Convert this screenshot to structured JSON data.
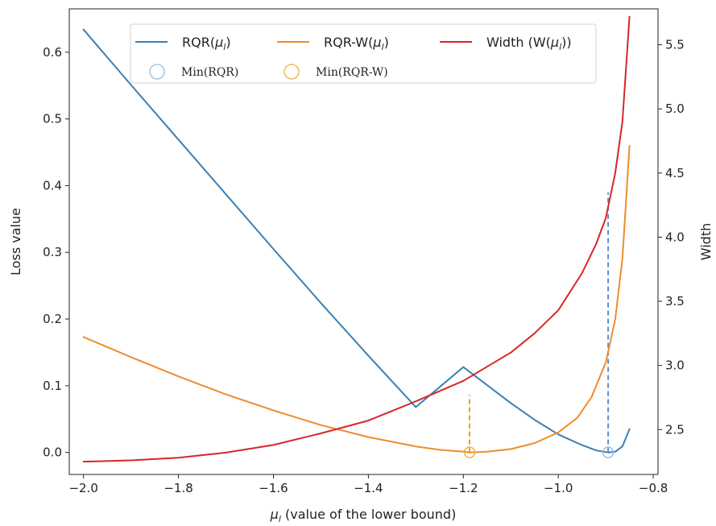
{
  "chart_data": {
    "type": "line",
    "xlabel_main": "μ",
    "xlabel_sub": "l",
    "xlabel_rest": " (value of the lower bound)",
    "ylabel_left": "Loss value",
    "ylabel_right": "Width",
    "xlim": [
      -2.03,
      -0.79
    ],
    "ylim_left": [
      -0.033,
      0.665
    ],
    "ylim_right": [
      2.15,
      5.78
    ],
    "x_ticks": [
      -2.0,
      -1.8,
      -1.6,
      -1.4,
      -1.2,
      -1.0,
      -0.8
    ],
    "x_tick_labels": [
      "−2.0",
      "−1.8",
      "−1.6",
      "−1.4",
      "−1.2",
      "−1.0",
      "−0.8"
    ],
    "y_left_ticks": [
      0.0,
      0.1,
      0.2,
      0.3,
      0.4,
      0.5,
      0.6
    ],
    "y_left_tick_labels": [
      "0.0",
      "0.1",
      "0.2",
      "0.3",
      "0.4",
      "0.5",
      "0.6"
    ],
    "y_right_ticks": [
      2.5,
      3.0,
      3.5,
      4.0,
      4.5,
      5.0,
      5.5
    ],
    "y_right_tick_labels": [
      "2.5",
      "3.0",
      "3.5",
      "4.0",
      "4.5",
      "5.0",
      "5.5"
    ],
    "series": [
      {
        "name": "RQR(μl)",
        "name_base": "RQR(",
        "name_sym": "μ",
        "name_sub": "l",
        "name_close": ")",
        "axis": "left",
        "color": "#3a80b4",
        "x": [
          -2.0,
          -1.9,
          -1.8,
          -1.7,
          -1.6,
          -1.5,
          -1.4,
          -1.3,
          -1.2,
          -1.1,
          -1.05,
          -1.0,
          -0.95,
          -0.92,
          -0.895,
          -0.88,
          -0.865,
          -0.85
        ],
        "y": [
          0.634,
          0.551,
          0.469,
          0.387,
          0.305,
          0.224,
          0.145,
          0.068,
          0.128,
          0.074,
          0.049,
          0.027,
          0.011,
          0.003,
          0.0,
          0.001,
          0.009,
          0.035
        ]
      },
      {
        "name": "RQR-W(μl)",
        "name_base": "RQR-W(",
        "name_sym": "μ",
        "name_sub": "l",
        "name_close": ")",
        "axis": "left",
        "color": "#ef8c2c",
        "x": [
          -2.0,
          -1.9,
          -1.8,
          -1.7,
          -1.6,
          -1.5,
          -1.4,
          -1.3,
          -1.25,
          -1.2,
          -1.187,
          -1.15,
          -1.1,
          -1.05,
          -1.0,
          -0.96,
          -0.93,
          -0.9,
          -0.88,
          -0.865,
          -0.85
        ],
        "y": [
          0.173,
          0.143,
          0.114,
          0.087,
          0.063,
          0.041,
          0.023,
          0.009,
          0.004,
          0.001,
          0.0,
          0.001,
          0.005,
          0.014,
          0.03,
          0.052,
          0.083,
          0.135,
          0.2,
          0.29,
          0.46
        ]
      },
      {
        "name": "Width (W(μl))",
        "name_base": "Width (W(",
        "name_sym": "μ",
        "name_sub": "l",
        "name_close": "))",
        "axis": "right",
        "color": "#d62728",
        "x": [
          -2.0,
          -1.9,
          -1.8,
          -1.7,
          -1.6,
          -1.5,
          -1.4,
          -1.3,
          -1.2,
          -1.1,
          -1.05,
          -1.0,
          -0.95,
          -0.92,
          -0.9,
          -0.88,
          -0.865,
          -0.85
        ],
        "y": [
          2.25,
          2.26,
          2.28,
          2.32,
          2.38,
          2.47,
          2.57,
          2.72,
          2.88,
          3.1,
          3.25,
          3.43,
          3.72,
          3.95,
          4.15,
          4.5,
          4.9,
          5.72
        ]
      }
    ],
    "markers": [
      {
        "name": "Min(RQR)",
        "x": -0.895,
        "y": 0.0,
        "color": "#9dbcd8",
        "drop_color": "#5b8fcc",
        "drop_to_right_y": 4.35
      },
      {
        "name": "Min(RQR-W)",
        "x": -1.187,
        "y": 0.0,
        "color": "#e8b24a",
        "drop_color": "#e0a21f",
        "drop_to_right_y": 2.77
      }
    ],
    "legend_placement": "top",
    "grid": false
  }
}
